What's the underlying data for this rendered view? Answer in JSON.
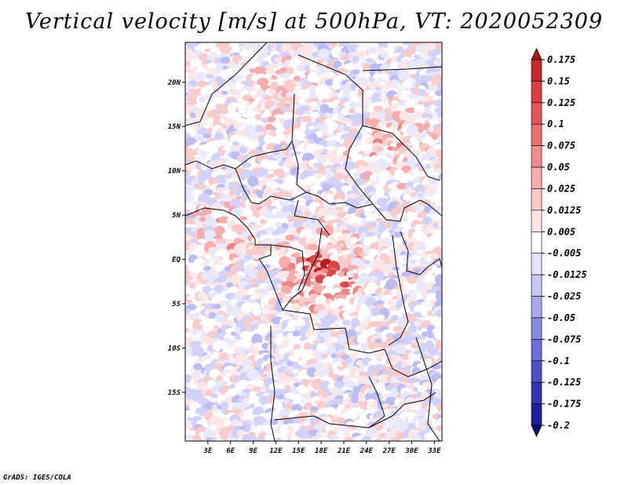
{
  "title": "Vertical velocity [m/s] at 500hPa, VT: 2020052309",
  "credit": "GrADS: IGES/COLA",
  "map": {
    "lat_labels": [
      "20N",
      "15N",
      "10N",
      "5N",
      "EQ",
      "5S",
      "10S",
      "15S"
    ],
    "lon_labels": [
      "3E",
      "6E",
      "9E",
      "12E",
      "15E",
      "18E",
      "21E",
      "24E",
      "27E",
      "30E",
      "33E"
    ],
    "lat_range": [
      -20.5,
      24.5
    ],
    "lon_range": [
      0,
      34
    ]
  },
  "colorbar": {
    "labels": [
      "0.175",
      "0.15",
      "0.125",
      "0.1",
      "0.075",
      "0.05",
      "0.025",
      "0.0125",
      "0.005",
      "-0.005",
      "-0.0125",
      "-0.025",
      "-0.05",
      "-0.075",
      "-0.1",
      "-0.125",
      "-0.175",
      "-0.2"
    ],
    "colors": [
      "#b01818",
      "#c42a2a",
      "#d83f3f",
      "#e35555",
      "#ec7070",
      "#f28c8c",
      "#f7abab",
      "#fbc9c9",
      "#fde4e4",
      "#ffffff",
      "#e2e2fb",
      "#c6c6f5",
      "#a8a8ee",
      "#8a8ae4",
      "#6c6cd8",
      "#4e4ec8",
      "#3434b4",
      "#1e1e9c",
      "#0c0c7c"
    ]
  },
  "colors": {
    "positive": "#c83232",
    "negative": "#3c3cc8",
    "neutral": "#ffffff"
  }
}
